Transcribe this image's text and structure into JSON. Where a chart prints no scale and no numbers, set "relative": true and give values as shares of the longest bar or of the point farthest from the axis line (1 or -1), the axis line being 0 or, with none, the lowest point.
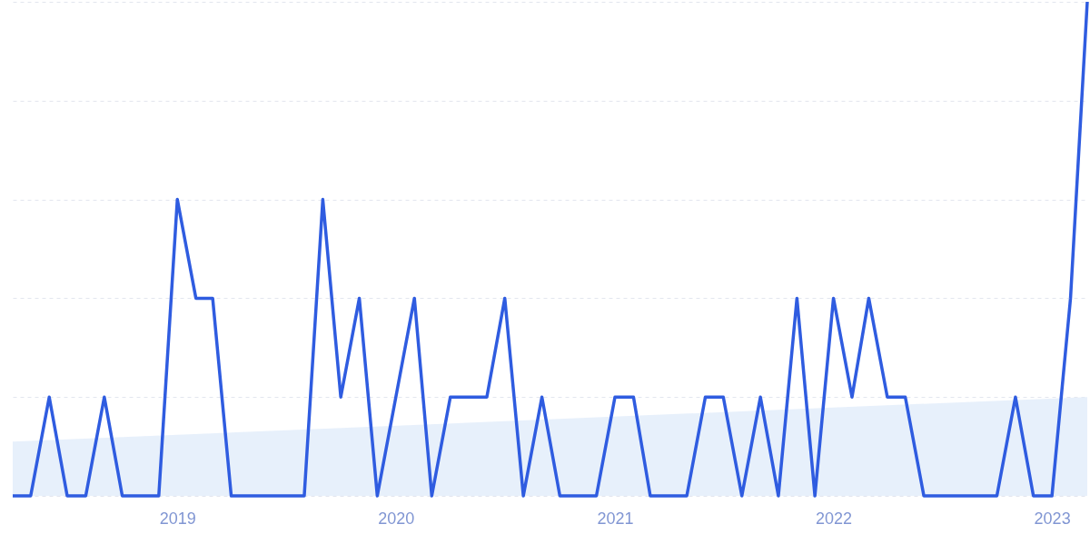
{
  "chart_data": {
    "type": "line",
    "relative": true,
    "grid": "y",
    "xlim": [
      "2018-04",
      "2023-03"
    ],
    "xticks": [
      "2019",
      "2020",
      "2021",
      "2022",
      "2023"
    ],
    "x": [
      "2018-04",
      "2018-05",
      "2018-06",
      "2018-07",
      "2018-08",
      "2018-09",
      "2018-10",
      "2018-11",
      "2018-12",
      "2019-01",
      "2019-02",
      "2019-03",
      "2019-04",
      "2019-05",
      "2019-06",
      "2019-07",
      "2019-08",
      "2019-09",
      "2019-10",
      "2019-11",
      "2019-12",
      "2020-01",
      "2020-02",
      "2020-03",
      "2020-04",
      "2020-05",
      "2020-06",
      "2020-07",
      "2020-08",
      "2020-09",
      "2020-10",
      "2020-11",
      "2020-12",
      "2021-01",
      "2021-02",
      "2021-03",
      "2021-04",
      "2021-05",
      "2021-06",
      "2021-07",
      "2021-08",
      "2021-09",
      "2021-10",
      "2021-11",
      "2021-12",
      "2022-01",
      "2022-02",
      "2022-03",
      "2022-04",
      "2022-05",
      "2022-06",
      "2022-07",
      "2022-08",
      "2022-09",
      "2022-10",
      "2022-11",
      "2022-12",
      "2023-01",
      "2023-02",
      "2023-03"
    ],
    "series": [
      {
        "type": "area",
        "color": "#e4eefb",
        "x": [
          "2018-04",
          "2023-03"
        ],
        "values": [
          0.11,
          0.2
        ]
      },
      {
        "color": "#2f5ce0",
        "values": [
          0,
          0,
          0.2,
          0,
          0,
          0.2,
          0,
          0,
          0,
          0.6,
          0.4,
          0.4,
          0,
          0,
          0,
          0,
          0,
          0.6,
          0.2,
          0.4,
          0,
          0.2,
          0.4,
          0,
          0.2,
          0.2,
          0.2,
          0.4,
          0,
          0.2,
          0,
          0,
          0,
          0.2,
          0.2,
          0,
          0,
          0,
          0.2,
          0.2,
          0,
          0.2,
          0,
          0.4,
          0,
          0.4,
          0.2,
          0.4,
          0.2,
          0.2,
          0,
          0,
          0,
          0,
          0,
          0.2,
          0,
          0,
          0.4,
          1
        ]
      }
    ]
  }
}
